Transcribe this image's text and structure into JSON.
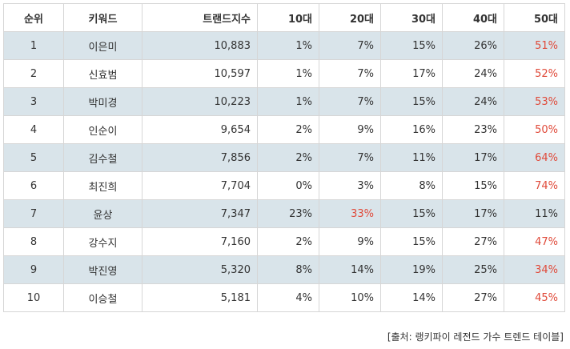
{
  "table": {
    "headers": [
      "순위",
      "키워드",
      "트랜드지수",
      "10대",
      "20대",
      "30대",
      "40대",
      "50대"
    ],
    "rows": [
      {
        "rank": "1",
        "keyword": "이은미",
        "index": "10,883",
        "a10": "1%",
        "a20": "7%",
        "a30": "15%",
        "a40": "26%",
        "a50": "51%"
      },
      {
        "rank": "2",
        "keyword": "신효범",
        "index": "10,597",
        "a10": "1%",
        "a20": "7%",
        "a30": "17%",
        "a40": "24%",
        "a50": "52%"
      },
      {
        "rank": "3",
        "keyword": "박미경",
        "index": "10,223",
        "a10": "1%",
        "a20": "7%",
        "a30": "15%",
        "a40": "24%",
        "a50": "53%"
      },
      {
        "rank": "4",
        "keyword": "인순이",
        "index": "9,654",
        "a10": "2%",
        "a20": "9%",
        "a30": "16%",
        "a40": "23%",
        "a50": "50%"
      },
      {
        "rank": "5",
        "keyword": "김수철",
        "index": "7,856",
        "a10": "2%",
        "a20": "7%",
        "a30": "11%",
        "a40": "17%",
        "a50": "64%"
      },
      {
        "rank": "6",
        "keyword": "최진희",
        "index": "7,704",
        "a10": "0%",
        "a20": "3%",
        "a30": "8%",
        "a40": "15%",
        "a50": "74%"
      },
      {
        "rank": "7",
        "keyword": "윤상",
        "index": "7,347",
        "a10": "23%",
        "a20": "33%",
        "a30": "15%",
        "a40": "17%",
        "a50": "11%"
      },
      {
        "rank": "8",
        "keyword": "강수지",
        "index": "7,160",
        "a10": "2%",
        "a20": "9%",
        "a30": "15%",
        "a40": "27%",
        "a50": "47%"
      },
      {
        "rank": "9",
        "keyword": "박진영",
        "index": "5,320",
        "a10": "8%",
        "a20": "14%",
        "a30": "19%",
        "a40": "25%",
        "a50": "34%"
      },
      {
        "rank": "10",
        "keyword": "이승철",
        "index": "5,181",
        "a10": "4%",
        "a20": "10%",
        "a30": "14%",
        "a40": "27%",
        "a50": "45%"
      }
    ]
  },
  "source": "[출처: 랭키파이 레전드 가수 트렌드 테이블]",
  "colors": {
    "row_shade": "#d9e4ea",
    "highlight_text": "#e04a3a",
    "border": "#d6d6d6"
  }
}
